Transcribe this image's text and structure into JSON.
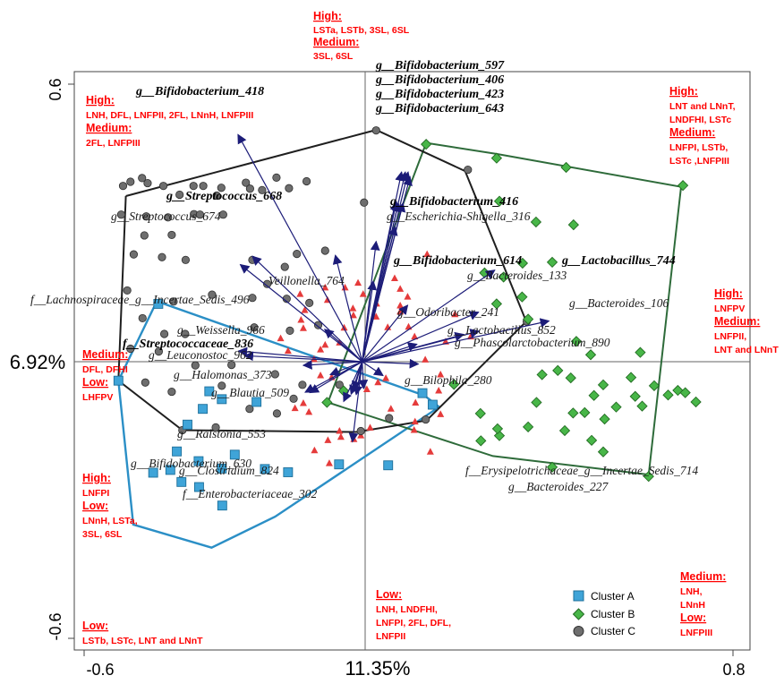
{
  "chart_data": {
    "type": "scatter",
    "x_ticks": [
      -0.6,
      0.8
    ],
    "y_ticks": [
      0.6,
      -0.6
    ],
    "xlim": [
      -0.6,
      0.8
    ],
    "ylim": [
      -0.6,
      0.6
    ],
    "xlabel": "11.35%",
    "ylabel": "6.92%",
    "legend": {
      "placement": "bottom-right",
      "entries": [
        {
          "label": "Cluster A",
          "color": "#3fa4d8",
          "marker": "square"
        },
        {
          "label": "Cluster B",
          "color": "#48b648",
          "marker": "diamond"
        },
        {
          "label": "Cluster C",
          "color": "#6e6e6e",
          "marker": "circle"
        }
      ]
    },
    "colors": {
      "cluster_a": "#3fa4d8",
      "cluster_b": "#48b648",
      "cluster_c": "#6e6e6e",
      "sample": "#e53b3b",
      "arrow": "#1c1c78",
      "hull_a": "#2b8fc6",
      "hull_b": "#2e6b3a",
      "hull_c": "#1f1f1f"
    },
    "hulls": {
      "cluster_a": [
        [
          -0.443,
          0.131
        ],
        [
          -0.526,
          -0.041
        ],
        [
          -0.494,
          -0.352
        ],
        [
          -0.325,
          -0.402
        ],
        [
          -0.188,
          -0.335
        ],
        [
          0.166,
          -0.098
        ],
        [
          0.134,
          -0.073
        ],
        [
          -0.445,
          0.131
        ]
      ],
      "cluster_b": [
        [
          -0.074,
          -0.088
        ],
        [
          0.138,
          0.473
        ],
        [
          0.291,
          0.449
        ],
        [
          0.688,
          0.378
        ],
        [
          0.618,
          -0.244
        ],
        [
          0.282,
          -0.204
        ],
        [
          -0.074,
          -0.088
        ]
      ],
      "cluster_c": [
        [
          -0.51,
          0.358
        ],
        [
          0.03,
          0.501
        ],
        [
          0.222,
          0.412
        ],
        [
          0.354,
          0.087
        ],
        [
          0.139,
          -0.127
        ],
        [
          -0.012,
          -0.152
        ],
        [
          -0.388,
          -0.148
        ],
        [
          -0.526,
          -0.041
        ],
        [
          -0.51,
          0.358
        ]
      ]
    },
    "cluster_a": [
      [
        -0.44,
        0.125
      ],
      [
        -0.526,
        -0.041
      ],
      [
        -0.33,
        -0.064
      ],
      [
        -0.303,
        -0.081
      ],
      [
        -0.228,
        -0.087
      ],
      [
        -0.344,
        -0.102
      ],
      [
        -0.377,
        -0.136
      ],
      [
        -0.4,
        -0.194
      ],
      [
        -0.414,
        -0.234
      ],
      [
        -0.275,
        -0.201
      ],
      [
        -0.353,
        -0.215
      ],
      [
        -0.303,
        -0.231
      ],
      [
        -0.451,
        -0.24
      ],
      [
        -0.39,
        -0.26
      ],
      [
        -0.352,
        -0.271
      ],
      [
        -0.302,
        -0.311
      ],
      [
        -0.21,
        -0.232
      ],
      [
        -0.16,
        -0.239
      ],
      [
        -0.05,
        -0.222
      ],
      [
        0.056,
        -0.224
      ],
      [
        0.152,
        -0.093
      ],
      [
        0.13,
        -0.068
      ]
    ],
    "cluster_b": [
      [
        0.138,
        0.47
      ],
      [
        0.29,
        0.44
      ],
      [
        0.44,
        0.42
      ],
      [
        0.692,
        0.381
      ],
      [
        0.375,
        0.302
      ],
      [
        0.296,
        0.347
      ],
      [
        0.456,
        0.296
      ],
      [
        0.346,
        0.213
      ],
      [
        0.41,
        0.215
      ],
      [
        0.264,
        0.192
      ],
      [
        0.305,
        0.183
      ],
      [
        0.345,
        0.14
      ],
      [
        0.29,
        0.125
      ],
      [
        0.358,
        0.092
      ],
      [
        0.462,
        0.044
      ],
      [
        0.493,
        0.015
      ],
      [
        0.6,
        0.02
      ],
      [
        0.422,
        -0.019
      ],
      [
        0.388,
        -0.028
      ],
      [
        0.45,
        -0.035
      ],
      [
        0.52,
        -0.05
      ],
      [
        0.58,
        -0.034
      ],
      [
        0.63,
        -0.052
      ],
      [
        0.66,
        -0.072
      ],
      [
        0.681,
        -0.062
      ],
      [
        0.697,
        -0.067
      ],
      [
        0.72,
        -0.087
      ],
      [
        0.548,
        -0.098
      ],
      [
        0.589,
        -0.075
      ],
      [
        0.604,
        -0.096
      ],
      [
        0.48,
        -0.11
      ],
      [
        0.523,
        -0.124
      ],
      [
        0.437,
        -0.149
      ],
      [
        0.495,
        -0.17
      ],
      [
        0.52,
        -0.195
      ],
      [
        0.358,
        -0.141
      ],
      [
        0.296,
        -0.16
      ],
      [
        0.256,
        -0.171
      ],
      [
        0.41,
        -0.228
      ],
      [
        0.455,
        -0.111
      ],
      [
        0.376,
        -0.088
      ],
      [
        0.255,
        -0.112
      ],
      [
        0.292,
        -0.145
      ],
      [
        0.198,
        -0.049
      ],
      [
        -0.04,
        -0.063
      ],
      [
        -0.076,
        -0.088
      ],
      [
        0.618,
        -0.248
      ],
      [
        0.5,
        -0.073
      ]
    ],
    "cluster_c": [
      [
        -0.516,
        0.38
      ],
      [
        -0.5,
        0.389
      ],
      [
        -0.475,
        0.397
      ],
      [
        -0.463,
        0.386
      ],
      [
        -0.429,
        0.38
      ],
      [
        -0.394,
        0.361
      ],
      [
        -0.364,
        0.38
      ],
      [
        -0.343,
        0.38
      ],
      [
        -0.314,
        0.359
      ],
      [
        -0.251,
        0.387
      ],
      [
        -0.304,
        0.376
      ],
      [
        -0.242,
        0.374
      ],
      [
        -0.216,
        0.371
      ],
      [
        -0.185,
        0.398
      ],
      [
        -0.158,
        0.375
      ],
      [
        0.004,
        0.344
      ],
      [
        -0.12,
        0.39
      ],
      [
        -0.52,
        0.318
      ],
      [
        -0.466,
        0.314
      ],
      [
        -0.419,
        0.312
      ],
      [
        -0.363,
        0.319
      ],
      [
        -0.35,
        0.318
      ],
      [
        -0.3,
        0.318
      ],
      [
        -0.47,
        0.273
      ],
      [
        -0.411,
        0.274
      ],
      [
        -0.493,
        0.232
      ],
      [
        -0.432,
        0.226
      ],
      [
        -0.381,
        0.22
      ],
      [
        -0.237,
        0.22
      ],
      [
        -0.167,
        0.205
      ],
      [
        -0.08,
        0.24
      ],
      [
        -0.141,
        0.233
      ],
      [
        -0.205,
        0.168
      ],
      [
        -0.507,
        0.154
      ],
      [
        -0.407,
        0.13
      ],
      [
        -0.324,
        0.145
      ],
      [
        -0.237,
        0.138
      ],
      [
        -0.163,
        0.136
      ],
      [
        -0.114,
        0.127
      ],
      [
        -0.474,
        0.094
      ],
      [
        -0.427,
        0.06
      ],
      [
        -0.382,
        0.06
      ],
      [
        -0.233,
        0.074
      ],
      [
        -0.156,
        0.067
      ],
      [
        -0.095,
        0.079
      ],
      [
        -0.5,
        0.028
      ],
      [
        -0.439,
        0.022
      ],
      [
        -0.36,
        -0.008
      ],
      [
        -0.282,
        -0.007
      ],
      [
        -0.188,
        -0.027
      ],
      [
        -0.129,
        -0.05
      ],
      [
        -0.049,
        -0.05
      ],
      [
        -0.468,
        -0.045
      ],
      [
        -0.411,
        -0.065
      ],
      [
        -0.303,
        -0.052
      ],
      [
        -0.243,
        -0.102
      ],
      [
        -0.184,
        -0.112
      ],
      [
        -0.148,
        -0.08
      ],
      [
        0.058,
        -0.122
      ],
      [
        -0.388,
        -0.148
      ],
      [
        -0.316,
        -0.142
      ],
      [
        -0.003,
        -0.15
      ],
      [
        0.03,
        0.5
      ],
      [
        0.228,
        0.415
      ],
      [
        0.355,
        0.087
      ],
      [
        0.137,
        -0.125
      ]
    ],
    "red_samples": [
      [
        -0.037,
        0.16
      ],
      [
        -0.009,
        0.17
      ],
      [
        -0.08,
        0.16
      ],
      [
        -0.134,
        0.146
      ],
      [
        0.002,
        0.146
      ],
      [
        0.082,
        0.157
      ],
      [
        0.082,
        0.121
      ],
      [
        0.082,
        0.108
      ],
      [
        -0.075,
        0.133
      ],
      [
        -0.124,
        0.111
      ],
      [
        -0.132,
        0.09
      ],
      [
        -0.127,
        0.072
      ],
      [
        -0.08,
        0.036
      ],
      [
        -0.049,
        0.041
      ],
      [
        -0.039,
        0.073
      ],
      [
        -0.09,
        0.026
      ],
      [
        -0.104,
        0.005
      ],
      [
        -0.16,
        0.023
      ],
      [
        -0.176,
        0.05
      ],
      [
        -0.019,
        0.1
      ],
      [
        0.03,
        0.097
      ],
      [
        0.055,
        0.074
      ],
      [
        0.1,
        0.075
      ],
      [
        0.113,
        0.054
      ],
      [
        0.136,
        0.004
      ],
      [
        0.18,
        0.043
      ],
      [
        0.234,
        0.054
      ],
      [
        0.169,
        -0.028
      ],
      [
        0.051,
        -0.036
      ],
      [
        0.034,
        -0.045
      ],
      [
        0.01,
        -0.06
      ],
      [
        -0.066,
        -0.034
      ],
      [
        -0.09,
        -0.03
      ],
      [
        -0.127,
        -0.09
      ],
      [
        -0.145,
        -0.101
      ],
      [
        -0.115,
        -0.109
      ],
      [
        0.114,
        -0.13
      ],
      [
        0.112,
        -0.148
      ],
      [
        0.169,
        -0.114
      ],
      [
        0.115,
        -0.089
      ],
      [
        -0.049,
        -0.15
      ],
      [
        -0.046,
        -0.163
      ],
      [
        -0.018,
        -0.168
      ],
      [
        -0.074,
        -0.17
      ],
      [
        -0.103,
        -0.192
      ],
      [
        -0.071,
        -0.22
      ],
      [
        -0.003,
        -0.16
      ],
      [
        0.147,
        -0.195
      ],
      [
        -0.02,
        0.115
      ],
      [
        0.031,
        0.125
      ],
      [
        0.2,
        0.102
      ],
      [
        0.07,
        0.18
      ],
      [
        0.14,
        0.232
      ],
      [
        0.017,
        -0.143
      ],
      [
        0.062,
        -0.102
      ],
      [
        0.165,
        -0.063
      ],
      [
        0.098,
        0.14
      ]
    ],
    "vectors": [
      {
        "label": "g__Bifidobacterium_418",
        "bold": true,
        "x": -0.268,
        "y": 0.491
      },
      {
        "label": "g__Bifidobacterium_597",
        "bold": true,
        "x": 0.085,
        "y": 0.41
      },
      {
        "label": "g__Bifidobacterium_406",
        "bold": true,
        "x": 0.093,
        "y": 0.41
      },
      {
        "label": "g__Bifidobacterium_423",
        "bold": true,
        "x": 0.099,
        "y": 0.41
      },
      {
        "label": "g__Bifidobacterium_643",
        "bold": true,
        "x": 0.103,
        "y": 0.4
      },
      {
        "label": "g__Streptococcus_668",
        "bold": true,
        "x": -0.237,
        "y": 0.228
      },
      {
        "label": "g__Streptococcus_674",
        "bold": false,
        "x": -0.263,
        "y": 0.21
      },
      {
        "label": "g__Bifidobacterium_416",
        "bold": true,
        "x": 0.088,
        "y": 0.343
      },
      {
        "label": "g__Escherichia-Shigella_316",
        "bold": false,
        "x": 0.078,
        "y": 0.343
      },
      {
        "label": "g__Bifidobacterium_614",
        "bold": true,
        "x": 0.071,
        "y": 0.292
      },
      {
        "label": "g__Lactobacillus_744",
        "bold": true,
        "x": 0.286,
        "y": 0.198
      },
      {
        "label": "g__Bacteroides_133",
        "bold": false,
        "x": 0.251,
        "y": 0.107
      },
      {
        "label": "g__Bacteroides_106",
        "bold": false,
        "x": 0.403,
        "y": 0.088
      },
      {
        "label": "Veillonella_764",
        "bold": false,
        "x": 0.024,
        "y": 0.174
      },
      {
        "label": "f__Lachnospiraceae_g__Incertae_Sedis_496",
        "bold": false,
        "x": -0.058,
        "y": 0.23
      },
      {
        "label": "g__Odoribacter_241",
        "bold": false,
        "x": 0.098,
        "y": 0.122
      },
      {
        "label": "g__Weissella_966",
        "bold": false,
        "x": -0.081,
        "y": 0.07
      },
      {
        "label": "g__Lactobacillus_852",
        "bold": false,
        "x": 0.219,
        "y": 0.059
      },
      {
        "label": "g__Phascolarctobacterium_890",
        "bold": false,
        "x": 0.252,
        "y": 0.066
      },
      {
        "label": "f__Streptococcaceae_836",
        "bold": true,
        "x": -0.267,
        "y": 0.023
      },
      {
        "label": "g__Leuconostoc_962",
        "bold": false,
        "x": -0.254,
        "y": 0.013
      },
      {
        "label": "g__Halomonas_373",
        "bold": false,
        "x": -0.127,
        "y": -0.008
      },
      {
        "label": "g__Bilophila_280",
        "bold": false,
        "x": 0.121,
        "y": -0.005
      },
      {
        "label": "g__Blautia_509",
        "bold": false,
        "x": -0.069,
        "y": -0.028
      },
      {
        "label": "g__Ralstonia_553",
        "bold": false,
        "x": -0.123,
        "y": -0.066
      },
      {
        "label": "g__Bifidobacterium_630",
        "bold": false,
        "x": -0.04,
        "y": -0.086
      },
      {
        "label": "g__Clostridium_824",
        "bold": false,
        "x": -0.013,
        "y": -0.071
      },
      {
        "label": "f__Enterobacteriaceae_302",
        "bold": false,
        "x": -0.018,
        "y": -0.061
      },
      {
        "label": "f__Erysipelotrichaceae_g__Incertae_Sedis_714",
        "bold": false,
        "x": -0.021,
        "y": -0.173
      },
      {
        "label": "g__Bacteroides_227",
        "bold": false,
        "x": 0.003,
        "y": -0.058
      },
      {
        "label": "",
        "bold": false,
        "x": 0.045,
        "y": -0.03
      },
      {
        "label": "",
        "bold": false,
        "x": 0.03,
        "y": 0.26
      },
      {
        "label": "",
        "bold": false,
        "x": 0.074,
        "y": 0.346
      },
      {
        "label": "",
        "bold": false,
        "x": -0.113,
        "y": -0.067
      },
      {
        "label": "",
        "bold": false,
        "x": -0.024,
        "y": -0.07
      },
      {
        "label": "",
        "bold": false,
        "x": 0.118,
        "y": 0.038
      }
    ],
    "annotations": [
      {
        "id": "top",
        "lines": [
          [
            "High:",
            "head"
          ],
          [
            "LSTa, LSTb, 3SL, 6SL",
            "text"
          ],
          [
            "Medium:",
            "head"
          ],
          [
            "3SL, 6SL",
            "text"
          ]
        ]
      },
      {
        "id": "top-left",
        "lines": [
          [
            "High:",
            "head"
          ],
          [
            "LNH, DFL, LNFPII, 2FL, LNnH, LNFPIII",
            "text"
          ],
          [
            "Medium:",
            "head"
          ],
          [
            "2FL, LNFPIII",
            "text"
          ]
        ]
      },
      {
        "id": "top-right",
        "lines": [
          [
            "High:",
            "head"
          ],
          [
            "LNT and LNnT,",
            "text"
          ],
          [
            "LNDFHI, LSTc",
            "text"
          ],
          [
            "Medium:",
            "head"
          ],
          [
            "LNFPI, LSTb,",
            "text"
          ],
          [
            "LSTc ,LNFPIII",
            "text"
          ]
        ]
      },
      {
        "id": "right",
        "lines": [
          [
            "High:",
            "head"
          ],
          [
            "LNFPV",
            "text"
          ],
          [
            "Medium:",
            "head"
          ],
          [
            "LNFPII,",
            "text"
          ],
          [
            "LNT and LNnT",
            "text"
          ]
        ]
      },
      {
        "id": "left",
        "lines": [
          [
            "Medium:",
            "head"
          ],
          [
            "DFL, DFHI",
            "text"
          ],
          [
            "Low:",
            "head"
          ],
          [
            "LHFPV",
            "text"
          ]
        ]
      },
      {
        "id": "left-low",
        "lines": [
          [
            "High:",
            "head"
          ],
          [
            "LNFPI",
            "text"
          ],
          [
            "Low:",
            "head"
          ],
          [
            "LNnH, LSTa,",
            "text"
          ],
          [
            "3SL, 6SL",
            "text"
          ]
        ]
      },
      {
        "id": "bottom-left",
        "lines": [
          [
            "Low:",
            "head"
          ],
          [
            "LSTb, LSTc, LNT and LNnT",
            "text"
          ]
        ]
      },
      {
        "id": "bottom",
        "lines": [
          [
            "Low:",
            "head"
          ],
          [
            "LNH, LNDFHI,",
            "text"
          ],
          [
            "LNFPI, 2FL, DFL,",
            "text"
          ],
          [
            "LNFPII",
            "text"
          ]
        ]
      },
      {
        "id": "bottom-right",
        "lines": [
          [
            "Medium:",
            "head"
          ],
          [
            "LNH,",
            "text"
          ],
          [
            "LNnH",
            "text"
          ],
          [
            "Low:",
            "head"
          ],
          [
            "LNFPIII",
            "text"
          ]
        ]
      }
    ]
  }
}
